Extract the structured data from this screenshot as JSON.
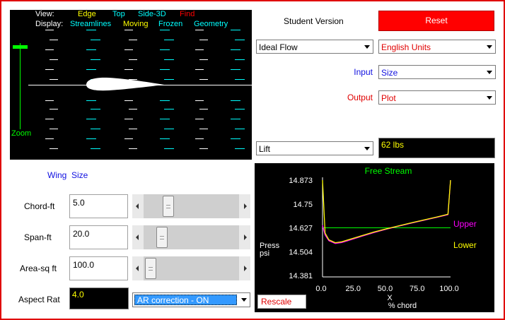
{
  "viewer": {
    "view_label": "View:",
    "view_options": [
      {
        "label": "Edge",
        "color": "#ffff00"
      },
      {
        "label": "Top",
        "color": "#00ffff"
      },
      {
        "label": "Side-3D",
        "color": "#00ffff"
      },
      {
        "label": "Find",
        "color": "#ff0000"
      }
    ],
    "display_label": "Display:",
    "display_options": [
      {
        "label": "Streamlines",
        "color": "#00ffff"
      },
      {
        "label": "Moving",
        "color": "#ffff00"
      },
      {
        "label": "Frozen",
        "color": "#00ffff"
      },
      {
        "label": "Geometry",
        "color": "#00ffff"
      }
    ],
    "zoom_label": "Zoom"
  },
  "header": {
    "version_label": "Student Version",
    "reset_label": "Reset"
  },
  "controls": {
    "flow_type": "Ideal Flow",
    "units": "English Units",
    "input_label": "Input",
    "input_value": "Size",
    "output_label": "Output",
    "output_value": "Plot",
    "result_quantity": "Lift",
    "result_value": "62 lbs"
  },
  "wing": {
    "title_wing": "Wing",
    "title_size": "Size",
    "rows": [
      {
        "label": "Chord-ft",
        "value": "5.0",
        "slider_fraction": 0.25
      },
      {
        "label": "Span-ft",
        "value": "20.0",
        "slider_fraction": 0.16
      },
      {
        "label": "Area-sq ft",
        "value": "100.0",
        "slider_fraction": 0.0
      }
    ],
    "aspect_label": "Aspect Rat",
    "aspect_value": "4.0",
    "ar_correction": "AR correction - ON"
  },
  "chart_data": {
    "type": "line",
    "title": "Free Stream",
    "xlabel": "% chord",
    "xlabel_symbol": "X",
    "ylabel_line1": "Press",
    "ylabel_line2": "psi",
    "xlim": [
      0,
      100
    ],
    "ylim": [
      14.381,
      14.873
    ],
    "x_ticks": [
      "0.0",
      "25.0",
      "50.0",
      "75.0",
      "100.0"
    ],
    "y_ticks": [
      "14.873",
      "14.75",
      "14.627",
      "14.504",
      "14.381"
    ],
    "free_stream": 14.627,
    "series": [
      {
        "name": "Upper",
        "color": "#ff00ff",
        "x": [
          0,
          2,
          5,
          10,
          15,
          20,
          30,
          40,
          50,
          60,
          70,
          80,
          90,
          95,
          98,
          100
        ],
        "y": [
          14.64,
          14.59,
          14.56,
          14.546,
          14.551,
          14.561,
          14.582,
          14.602,
          14.62,
          14.636,
          14.652,
          14.667,
          14.682,
          14.69,
          14.695,
          14.873
        ]
      },
      {
        "name": "Lower",
        "color": "#ffff00",
        "x": [
          0,
          2,
          5,
          10,
          15,
          20,
          30,
          40,
          50,
          60,
          70,
          80,
          90,
          95,
          98,
          100
        ],
        "y": [
          14.873,
          14.6,
          14.565,
          14.55,
          14.555,
          14.565,
          14.585,
          14.605,
          14.622,
          14.638,
          14.654,
          14.669,
          14.684,
          14.692,
          14.697,
          14.873
        ]
      }
    ],
    "rescale_label": "Rescale"
  }
}
